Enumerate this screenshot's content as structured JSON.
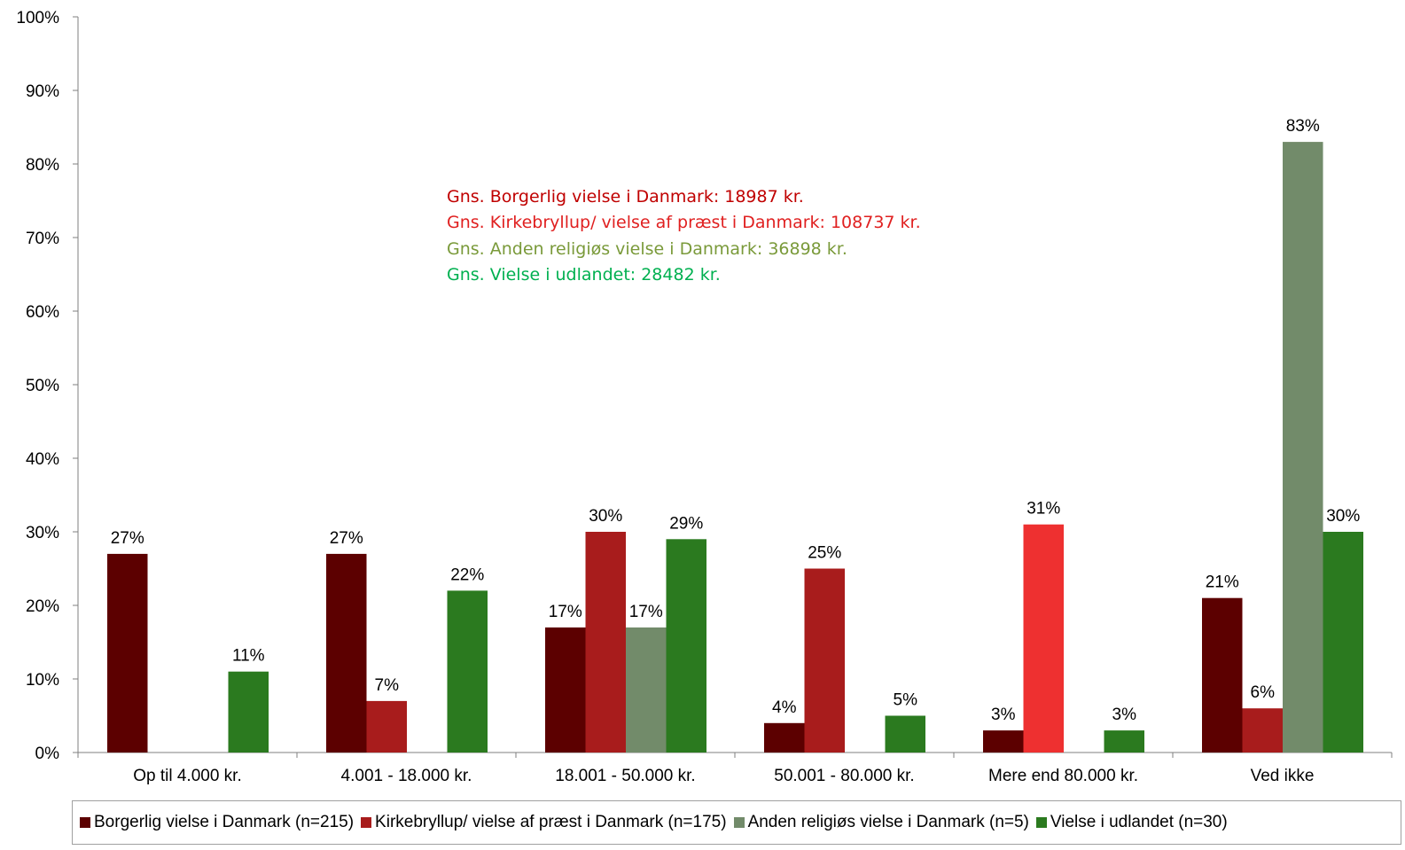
{
  "chart_data": {
    "type": "bar",
    "categories": [
      "Op til 4.000 kr.",
      "4.001 - 18.000 kr.",
      "18.001 - 50.000 kr.",
      "50.001 - 80.000 kr.",
      "Mere end 80.000 kr.",
      "Ved ikke"
    ],
    "series": [
      {
        "name": "Borgerlig vielse i Danmark (n=215)",
        "color": "#5c0000",
        "values": [
          27,
          27,
          17,
          4,
          3,
          21
        ],
        "labels": [
          "27%",
          "27%",
          "17%",
          "4%",
          "3%",
          "21%"
        ]
      },
      {
        "name": "Kirkebryllup/ vielse af præst i Danmark (n=175)",
        "color": "#a81c1c",
        "values": [
          0,
          7,
          30,
          25,
          31,
          6
        ],
        "labels": [
          "",
          "7%",
          "30%",
          "25%",
          "31%",
          "6%"
        ],
        "highlight": {
          "index": 4,
          "color": "#ee3030"
        }
      },
      {
        "name": "Anden religiøs vielse i Danmark (n=5)",
        "color": "#728b6a",
        "values": [
          0,
          0,
          17,
          0,
          0,
          83
        ],
        "labels": [
          "",
          "",
          "17%",
          "",
          "",
          "83%"
        ]
      },
      {
        "name": "Vielse i udlandet (n=30)",
        "color": "#2b7a1f",
        "values": [
          11,
          22,
          29,
          5,
          3,
          30
        ],
        "labels": [
          "11%",
          "22%",
          "29%",
          "5%",
          "3%",
          "30%"
        ]
      }
    ],
    "ylim": [
      0,
      100
    ],
    "yticks": [
      "0%",
      "10%",
      "20%",
      "30%",
      "40%",
      "50%",
      "60%",
      "70%",
      "80%",
      "90%",
      "100%"
    ],
    "legend_position": "bottom",
    "grid": false
  },
  "annotations": [
    {
      "text": "Gns. Borgerlig vielse i Danmark: 18987 kr.",
      "color": "#c00000"
    },
    {
      "text": "Gns. Kirkebryllup/ vielse af præst i Danmark: 108737 kr.",
      "color": "#e02020"
    },
    {
      "text": "Gns. Anden religiøs vielse i Danmark: 36898 kr.",
      "color": "#7a9a3a"
    },
    {
      "text": "Gns. Vielse i udlandet: 28482 kr.",
      "color": "#00b050"
    }
  ]
}
